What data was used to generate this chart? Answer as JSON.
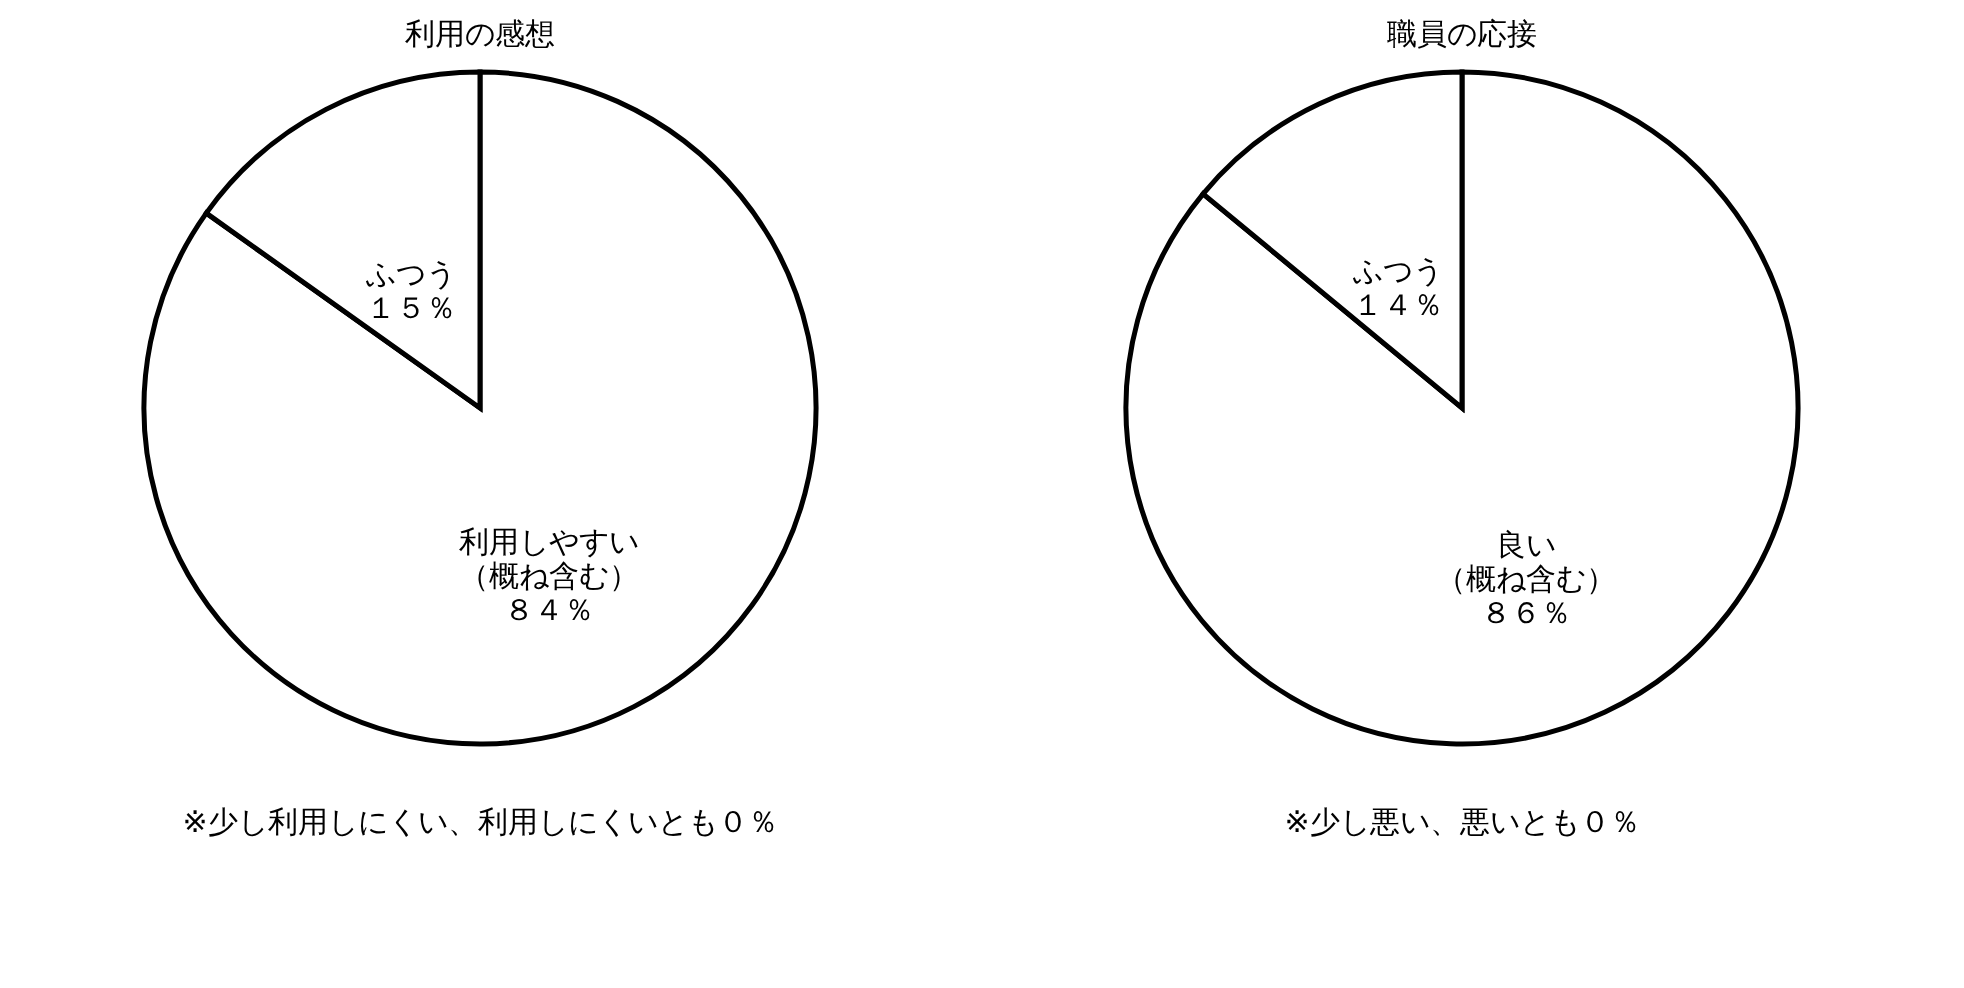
{
  "chart_data": [
    {
      "type": "pie",
      "title": "利用の感想",
      "categories": [
        "利用しやすい（概ね含む）",
        "ふつう"
      ],
      "values": [
        84,
        15
      ],
      "value_labels": [
        "８４％",
        "１５％"
      ],
      "colors": [
        "#ffffff",
        "#ffffff"
      ],
      "annotations": [
        "※少し利用しにくい、利用しにくいとも０％"
      ]
    },
    {
      "type": "pie",
      "title": "職員の応接",
      "categories": [
        "良い（概ね含む）",
        "ふつう"
      ],
      "values": [
        86,
        14
      ],
      "value_labels": [
        "８６％",
        "１４％"
      ],
      "colors": [
        "#ffffff",
        "#ffffff"
      ],
      "annotations": [
        "※少し悪い、悪いとも０％"
      ]
    }
  ]
}
